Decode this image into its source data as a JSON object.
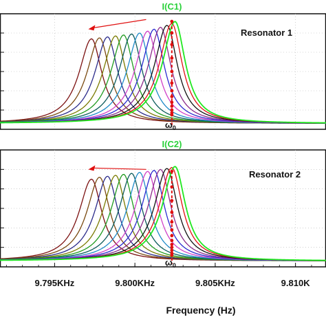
{
  "figure": {
    "xlabel": "Frequency (Hz)",
    "x_ticks": [
      {
        "value": 9795,
        "label": "9.795KHz"
      },
      {
        "value": 9800,
        "label": "9.800KHz"
      },
      {
        "value": 9805,
        "label": "9.805KHz"
      },
      {
        "value": 9810,
        "label": "9.810K"
      }
    ],
    "x_range": [
      9791.6,
      9811.9
    ],
    "omega_label": "ω",
    "omega_sub": "0"
  },
  "colors": {
    "series": [
      "#7b1010",
      "#7a4a10",
      "#2a2a8a",
      "#7a7a00",
      "#1e9a1e",
      "#0a5a5a",
      "#1e8ac8",
      "#d040c8",
      "#2a2ad0",
      "#8a2a8a",
      "#111111",
      "#e01010",
      "#20e820"
    ],
    "marker": "#e01010",
    "arrow": "#e01010",
    "axis": "#111111",
    "grid": "#b0b0b0"
  },
  "chart_data": [
    {
      "type": "line",
      "title": "I(C1)",
      "annotation": "Resonator 1",
      "xlabel": "Frequency (Hz)",
      "ylabel": "",
      "x_unit": "Hz",
      "xlim": [
        9791.6,
        9811.9
      ],
      "ylim": [
        0,
        1.2
      ],
      "grid": true,
      "gridlines_y": [
        0.2,
        0.4,
        0.6,
        0.8,
        1.0
      ],
      "omega0_x": 9802.3,
      "series": [
        {
          "f0": 9797.3,
          "peak": 0.94
        },
        {
          "f0": 9797.8,
          "peak": 0.95
        },
        {
          "f0": 9798.3,
          "peak": 0.96
        },
        {
          "f0": 9798.8,
          "peak": 0.97
        },
        {
          "f0": 9799.3,
          "peak": 0.98
        },
        {
          "f0": 9799.8,
          "peak": 0.99
        },
        {
          "f0": 9800.3,
          "peak": 1.0
        },
        {
          "f0": 9800.8,
          "peak": 1.02
        },
        {
          "f0": 9801.2,
          "peak": 1.04
        },
        {
          "f0": 9801.6,
          "peak": 1.06
        },
        {
          "f0": 9802.0,
          "peak": 1.08
        },
        {
          "f0": 9802.3,
          "peak": 1.1
        },
        {
          "f0": 9802.5,
          "peak": 1.12
        }
      ],
      "markers_x": 9802.3,
      "markers_y": [
        1.12,
        1.0,
        0.88,
        0.74,
        0.6,
        0.48,
        0.4,
        0.34,
        0.28,
        0.24,
        0.2,
        0.17,
        0.15
      ]
    },
    {
      "type": "line",
      "title": "I(C2)",
      "annotation": "Resonator 2",
      "xlabel": "Frequency (Hz)",
      "ylabel": "",
      "x_unit": "Hz",
      "xlim": [
        9791.6,
        9811.9
      ],
      "ylim": [
        0,
        1.2
      ],
      "grid": true,
      "gridlines_y": [
        0.2,
        0.4,
        0.6,
        0.8,
        1.0
      ],
      "omega0_x": 9802.3,
      "series": [
        {
          "f0": 9797.3,
          "peak": 0.9
        },
        {
          "f0": 9797.8,
          "peak": 0.92
        },
        {
          "f0": 9798.3,
          "peak": 0.93
        },
        {
          "f0": 9798.8,
          "peak": 0.94
        },
        {
          "f0": 9799.3,
          "peak": 0.95
        },
        {
          "f0": 9799.8,
          "peak": 0.96
        },
        {
          "f0": 9800.3,
          "peak": 0.97
        },
        {
          "f0": 9800.8,
          "peak": 0.98
        },
        {
          "f0": 9801.2,
          "peak": 0.99
        },
        {
          "f0": 9801.6,
          "peak": 1.0
        },
        {
          "f0": 9802.0,
          "peak": 1.01
        },
        {
          "f0": 9802.3,
          "peak": 1.02
        },
        {
          "f0": 9802.5,
          "peak": 1.03
        }
      ],
      "markers_x": 9802.3,
      "markers_y": [
        0.98,
        0.82,
        0.68,
        0.56,
        0.46,
        0.38,
        0.32,
        0.27,
        0.23,
        0.2,
        0.17,
        0.14,
        0.12
      ]
    }
  ]
}
